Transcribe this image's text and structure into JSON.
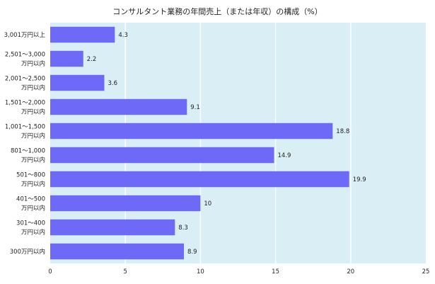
{
  "chart_data": {
    "type": "bar",
    "orientation": "horizontal",
    "title": "コンサルタント業務の年間売上（または年収）の構成（%）",
    "categories": [
      [
        "3,001万円以上"
      ],
      [
        "2,501～3,000",
        "万円以内"
      ],
      [
        "2,001～2,500",
        "万円以内"
      ],
      [
        "1,501～2,000",
        "万円以内"
      ],
      [
        "1,001～1,500",
        "万円以内"
      ],
      [
        "801～1,000",
        "万円以内"
      ],
      [
        "501～800",
        "万円以内"
      ],
      [
        "401～500",
        "万円以内"
      ],
      [
        "301～400",
        "万円以内"
      ],
      [
        "300万円以内"
      ]
    ],
    "values": [
      4.3,
      2.2,
      3.6,
      9.1,
      18.8,
      14.9,
      19.9,
      10,
      8.3,
      8.9
    ],
    "data_labels": [
      "4.3",
      "2.2",
      "3.6",
      "9.1",
      "18.8",
      "14.9",
      "19.9",
      "10",
      "8.3",
      "8.9"
    ],
    "xlim": [
      0,
      25
    ],
    "x_ticks": [
      "0",
      "5",
      "10",
      "15",
      "20",
      "25"
    ],
    "grid": true,
    "colors": {
      "bar": "#6e69f7",
      "plot_bg": "#d9eef5",
      "grid": "#ffffff"
    }
  }
}
